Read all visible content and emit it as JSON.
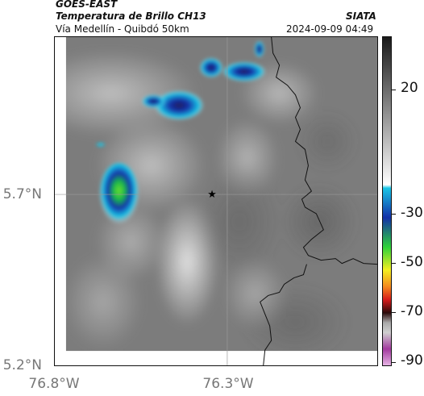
{
  "header": {
    "product": "GOES-EAST",
    "title": "Temperatura de Brillo CH13",
    "subtitle": "Vía Medellín - Quibdó 50km",
    "agency": "SIATA",
    "timestamp": "2024-09-09 04:49"
  },
  "map": {
    "latitude_ticks": [
      "5.7°N",
      "5.2°N"
    ],
    "longitude_ticks": [
      "76.8°W",
      "76.3°W"
    ],
    "marker": "star"
  },
  "colorbar": {
    "ticks": [
      "20",
      "-30",
      "-50",
      "-70",
      "-90"
    ],
    "palette": {
      "warm": "#1a1a1a",
      "mid": "#8a8a8a",
      "cool": "#ffffff",
      "cyan": "#19c6e6",
      "blue": "#1330a8",
      "green": "#2fd23a",
      "yellow": "#f4ef22",
      "orange": "#f58a1e",
      "red": "#d61c1c",
      "dark": "#2b0b0b",
      "magenta": "#a33a9f"
    }
  }
}
